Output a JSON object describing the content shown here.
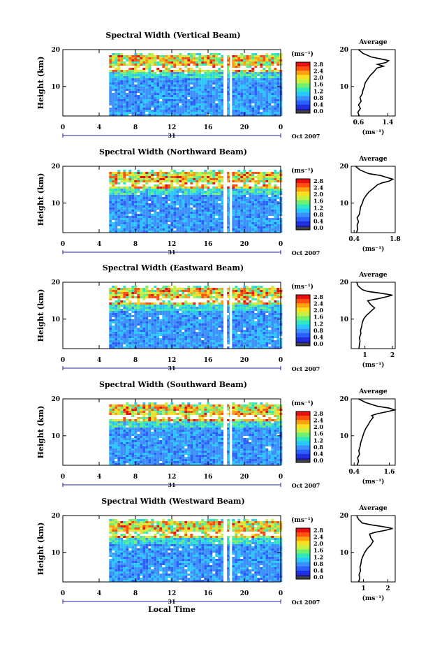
{
  "chart_data": [
    {
      "type": "heatmap",
      "title": "Spectral Width (Vertical Beam)",
      "ylabel": "Height (km)",
      "xticks": [
        "0",
        "4",
        "8",
        "12",
        "16",
        "20",
        "0"
      ],
      "yticks": [
        "10",
        "20"
      ],
      "xlim": [
        0,
        24
      ],
      "ylim": [
        2,
        20
      ],
      "date_label": "31",
      "month_label": "Oct 2007",
      "colorbar": {
        "unit": "(ms⁻¹)",
        "ticks": [
          "0.0",
          "0.4",
          "0.8",
          "1.2",
          "1.6",
          "2.0",
          "2.4",
          "2.8"
        ]
      },
      "average": {
        "title": "Average",
        "unit": "(ms⁻¹)",
        "xticks": [
          "0.6",
          "1.4"
        ],
        "xlim": [
          0.4,
          1.6
        ],
        "yticks": [
          "10",
          "20"
        ],
        "heights": [
          2,
          3,
          4,
          5,
          6,
          7,
          8,
          9,
          10,
          11,
          12,
          13,
          14,
          15,
          15.5,
          16,
          16.5,
          17,
          17.5,
          18,
          19,
          20
        ],
        "values": [
          0.62,
          0.58,
          0.65,
          0.6,
          0.67,
          0.64,
          0.7,
          0.72,
          0.76,
          0.78,
          0.85,
          0.92,
          1.02,
          1.1,
          1.28,
          1.12,
          1.35,
          1.42,
          1.2,
          0.95,
          0.72,
          0.6
        ]
      }
    },
    {
      "type": "heatmap",
      "title": "Spectral Width (Northward Beam)",
      "ylabel": "Height (km)",
      "xticks": [
        "0",
        "4",
        "8",
        "12",
        "16",
        "20",
        "0"
      ],
      "yticks": [
        "10",
        "20"
      ],
      "xlim": [
        0,
        24
      ],
      "ylim": [
        2,
        20
      ],
      "date_label": "31",
      "month_label": "Oct 2007",
      "colorbar": {
        "unit": "(ms⁻¹)",
        "ticks": [
          "0.0",
          "0.4",
          "0.8",
          "1.2",
          "1.6",
          "2.0",
          "2.4",
          "2.8"
        ]
      },
      "average": {
        "title": "Average",
        "unit": "(ms⁻¹)",
        "xticks": [
          "0.4",
          "1.8"
        ],
        "xlim": [
          0.3,
          1.8
        ],
        "yticks": [
          "10",
          "20"
        ],
        "heights": [
          2,
          3,
          4,
          5,
          6,
          7,
          8,
          9,
          10,
          11,
          12,
          13,
          14,
          15,
          15.5,
          16,
          16.5,
          17,
          17.5,
          18,
          19,
          20
        ],
        "values": [
          0.48,
          0.52,
          0.5,
          0.55,
          0.5,
          0.58,
          0.6,
          0.62,
          0.68,
          0.72,
          0.8,
          0.9,
          1.05,
          1.2,
          1.35,
          1.6,
          1.72,
          1.5,
          1.3,
          0.9,
          0.6,
          0.45
        ]
      }
    },
    {
      "type": "heatmap",
      "title": "Spectral Width (Eastward Beam)",
      "ylabel": "Height (km)",
      "xticks": [
        "0",
        "4",
        "8",
        "12",
        "16",
        "20",
        "0"
      ],
      "yticks": [
        "10",
        "20"
      ],
      "xlim": [
        0,
        24
      ],
      "ylim": [
        2,
        20
      ],
      "date_label": "31",
      "month_label": "Oct 2007",
      "colorbar": {
        "unit": "(ms⁻¹)",
        "ticks": [
          "0.0",
          "0.4",
          "0.8",
          "1.2",
          "1.6",
          "2.0",
          "2.4",
          "2.8"
        ]
      },
      "average": {
        "title": "Average",
        "unit": "(ms⁻¹)",
        "xticks": [
          "1",
          "2"
        ],
        "xlim": [
          0.5,
          2.1
        ],
        "yticks": [
          "10",
          "20"
        ],
        "heights": [
          2,
          3,
          4,
          5,
          6,
          7,
          8,
          9,
          10,
          11,
          12,
          13,
          14,
          15,
          15.5,
          16,
          16.5,
          17,
          17.5,
          18,
          19,
          20
        ],
        "values": [
          0.78,
          0.8,
          0.82,
          0.8,
          0.85,
          0.84,
          0.88,
          0.9,
          0.95,
          1.05,
          1.2,
          1.35,
          1.2,
          1.1,
          1.45,
          1.75,
          2.0,
          1.6,
          1.1,
          0.9,
          0.75,
          0.7
        ]
      }
    },
    {
      "type": "heatmap",
      "title": "Spectral Width (Southward Beam)",
      "ylabel": "Height (km)",
      "xticks": [
        "0",
        "4",
        "8",
        "12",
        "16",
        "20",
        "0"
      ],
      "yticks": [
        "10",
        "20"
      ],
      "xlim": [
        0,
        24
      ],
      "ylim": [
        2,
        20
      ],
      "date_label": "31",
      "month_label": "Oct 2007",
      "colorbar": {
        "unit": "(ms⁻¹)",
        "ticks": [
          "0.0",
          "0.4",
          "0.8",
          "1.2",
          "1.6",
          "2.0",
          "2.4",
          "2.8"
        ]
      },
      "average": {
        "title": "Average",
        "unit": "(ms⁻¹)",
        "xticks": [
          "0.4",
          "1.6"
        ],
        "xlim": [
          0.3,
          1.8
        ],
        "yticks": [
          "10",
          "20"
        ],
        "heights": [
          2,
          3,
          4,
          5,
          6,
          7,
          8,
          9,
          10,
          11,
          12,
          13,
          14,
          15,
          15.5,
          16,
          16.5,
          17,
          17.5,
          18,
          19,
          20
        ],
        "values": [
          0.5,
          0.55,
          0.52,
          0.58,
          0.56,
          0.6,
          0.62,
          0.66,
          0.7,
          0.74,
          0.8,
          0.88,
          0.95,
          1.05,
          1.0,
          1.2,
          1.5,
          1.78,
          1.6,
          1.2,
          0.8,
          0.55
        ]
      }
    },
    {
      "type": "heatmap",
      "title": "Spectral Width (Westward Beam)",
      "ylabel": "Height (km)",
      "xlabel": "Local Time",
      "xticks": [
        "0",
        "4",
        "8",
        "12",
        "16",
        "20",
        "0"
      ],
      "yticks": [
        "10",
        "20"
      ],
      "xlim": [
        0,
        24
      ],
      "ylim": [
        2,
        20
      ],
      "date_label": "31",
      "month_label": "Oct 2007",
      "colorbar": {
        "unit": "(ms⁻¹)",
        "ticks": [
          "0.0",
          "0.4",
          "0.8",
          "1.2",
          "1.6",
          "2.0",
          "2.4",
          "2.8"
        ]
      },
      "average": {
        "title": "Average",
        "unit": "(ms⁻¹)",
        "xticks": [
          "1",
          "2"
        ],
        "xlim": [
          0.5,
          2.3
        ],
        "yticks": [
          "10",
          "20"
        ],
        "heights": [
          2,
          3,
          4,
          5,
          6,
          7,
          8,
          9,
          10,
          11,
          12,
          13,
          14,
          15,
          15.5,
          16,
          16.5,
          17,
          17.5,
          18,
          19,
          20
        ],
        "values": [
          0.8,
          0.85,
          0.82,
          0.88,
          0.86,
          0.9,
          0.92,
          0.98,
          1.05,
          1.15,
          1.3,
          1.4,
          1.3,
          1.25,
          1.5,
          1.9,
          2.2,
          1.8,
          1.3,
          0.95,
          0.8,
          0.72
        ]
      }
    }
  ]
}
